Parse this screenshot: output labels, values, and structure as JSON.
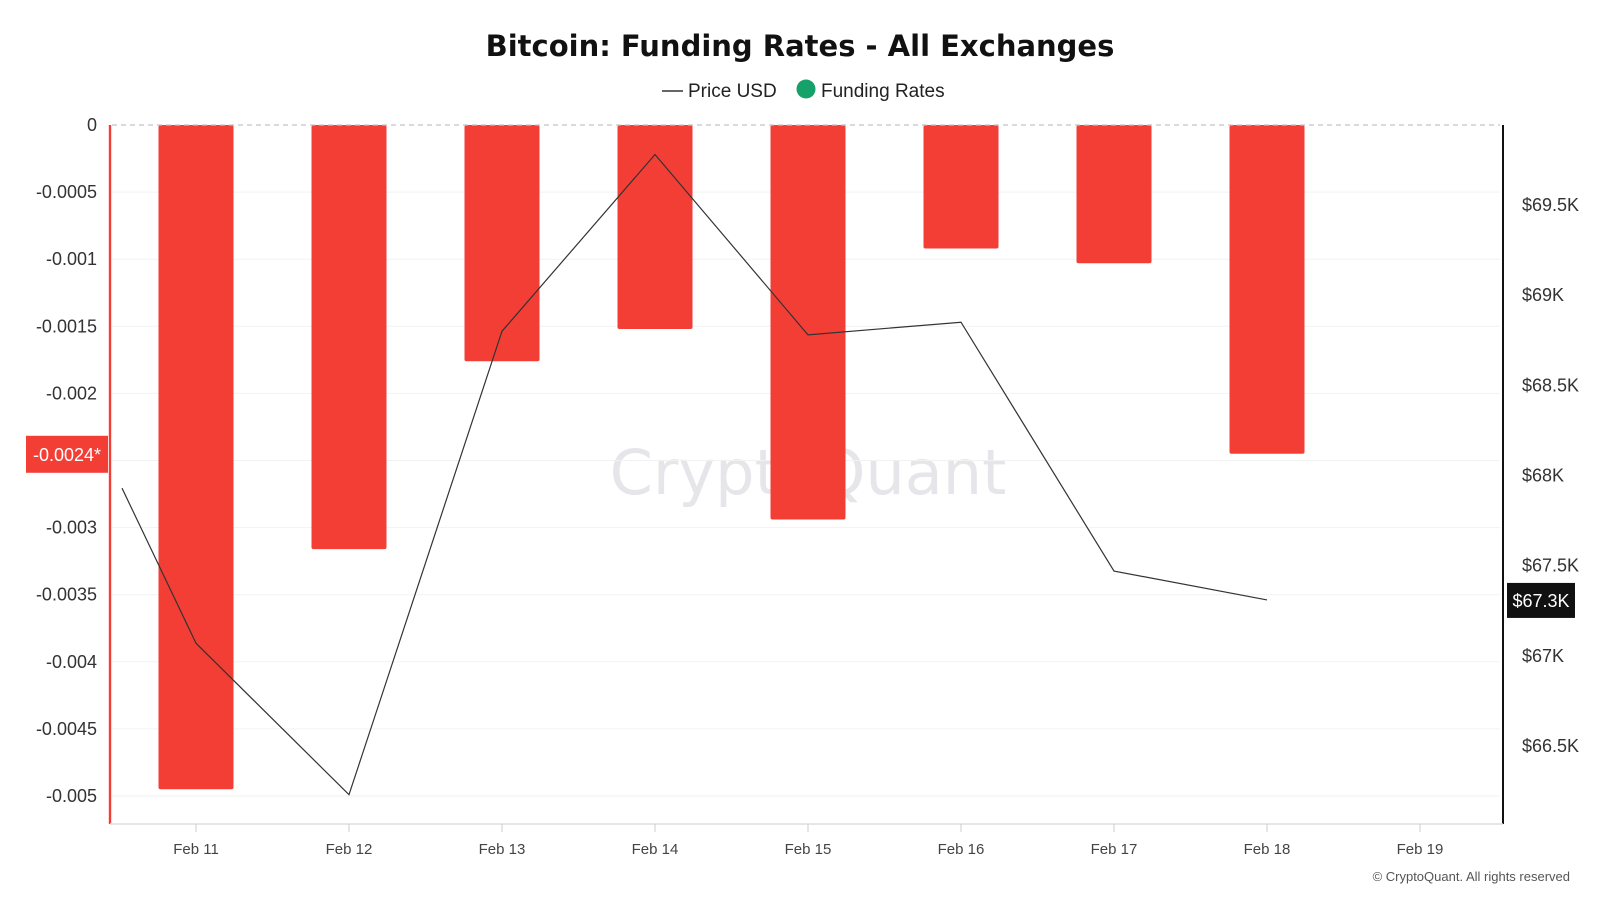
{
  "chart_data": {
    "type": "bar",
    "title": "Bitcoin: Funding Rates - All Exchanges",
    "legend": [
      {
        "name": "Price USD",
        "marker": "line",
        "color": "#333333"
      },
      {
        "name": "Funding Rates",
        "marker": "dot",
        "color": "#16a06a"
      }
    ],
    "categories": [
      "Feb 11",
      "Feb 12",
      "Feb 13",
      "Feb 14",
      "Feb 15",
      "Feb 16",
      "Feb 17",
      "Feb 18",
      "Feb 19"
    ],
    "series": [
      {
        "name": "Funding Rates",
        "axis": "left",
        "type": "bar",
        "color": "#f33e36",
        "values": [
          -0.00495,
          -0.00316,
          -0.00176,
          -0.00152,
          -0.00294,
          -0.00092,
          -0.00103,
          -0.00245,
          null
        ]
      },
      {
        "name": "Price USD",
        "axis": "right",
        "type": "line",
        "color": "#333333",
        "values": [
          67070,
          66230,
          68800,
          69780,
          68780,
          68850,
          67470,
          67310,
          null
        ],
        "lead_value": 67930
      }
    ],
    "y_left": {
      "ylim": [
        -0.0052,
        0
      ],
      "ticks": [
        0,
        -0.0005,
        -0.001,
        -0.0015,
        -0.002,
        -0.0025,
        -0.003,
        -0.0035,
        -0.004,
        -0.0045,
        -0.005
      ],
      "tick_labels": [
        "0",
        "-0.0005",
        "-0.001",
        "-0.0015",
        "-0.002",
        "",
        "-0.003",
        "-0.0035",
        "-0.004",
        "-0.0045",
        "-0.005"
      ],
      "current_marker": {
        "value": -0.00245,
        "label": "-0.0024*",
        "color": "#f33e36"
      }
    },
    "y_right": {
      "ylim": [
        66100,
        69940
      ],
      "ticks": [
        69500,
        69000,
        68500,
        68000,
        67500,
        67000,
        66500
      ],
      "tick_labels": [
        "$69.5K",
        "$69K",
        "$68.5K",
        "$68K",
        "$67.5K",
        "$67K",
        "$66.5K"
      ],
      "current_marker": {
        "value": 67310,
        "label": "$67.3K",
        "color": "#111111"
      }
    },
    "watermark": "CryptoQuant",
    "copyright": "© CryptoQuant. All rights reserved"
  }
}
